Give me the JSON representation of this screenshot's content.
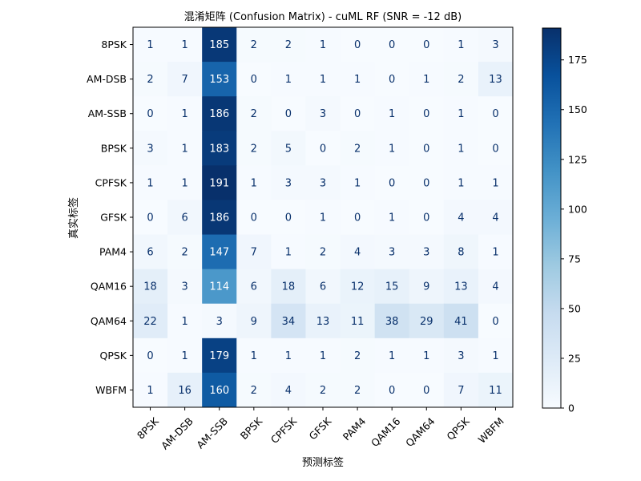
{
  "chart_data": {
    "type": "heatmap",
    "title": "混淆矩阵 (Confusion Matrix) - cuML RF (SNR = -12 dB)",
    "xlabel": "预测标签",
    "ylabel": "真实标签",
    "x_categories": [
      "8PSK",
      "AM-DSB",
      "AM-SSB",
      "BPSK",
      "CPFSK",
      "GFSK",
      "PAM4",
      "QAM16",
      "QAM64",
      "QPSK",
      "WBFM"
    ],
    "y_categories": [
      "8PSK",
      "AM-DSB",
      "AM-SSB",
      "BPSK",
      "CPFSK",
      "GFSK",
      "PAM4",
      "QAM16",
      "QAM64",
      "QPSK",
      "WBFM"
    ],
    "values": [
      [
        1,
        1,
        185,
        2,
        2,
        1,
        0,
        0,
        0,
        1,
        3
      ],
      [
        2,
        7,
        153,
        0,
        1,
        1,
        1,
        0,
        1,
        2,
        13
      ],
      [
        0,
        1,
        186,
        2,
        0,
        3,
        0,
        1,
        0,
        1,
        0
      ],
      [
        3,
        1,
        183,
        2,
        5,
        0,
        2,
        1,
        0,
        1,
        0
      ],
      [
        1,
        1,
        191,
        1,
        3,
        3,
        1,
        0,
        0,
        1,
        1
      ],
      [
        0,
        6,
        186,
        0,
        0,
        1,
        0,
        1,
        0,
        4,
        4
      ],
      [
        6,
        2,
        147,
        7,
        1,
        2,
        4,
        3,
        3,
        8,
        1
      ],
      [
        18,
        3,
        114,
        6,
        18,
        6,
        12,
        15,
        9,
        13,
        4
      ],
      [
        22,
        1,
        3,
        9,
        34,
        13,
        11,
        38,
        29,
        41,
        0
      ],
      [
        0,
        1,
        179,
        1,
        1,
        1,
        2,
        1,
        1,
        3,
        1
      ],
      [
        1,
        16,
        160,
        2,
        4,
        2,
        2,
        0,
        0,
        7,
        11
      ]
    ],
    "colormap": "Blues",
    "vmin": 0,
    "vmax": 191,
    "colorbar_ticks": [
      0,
      25,
      50,
      75,
      100,
      125,
      150,
      175
    ],
    "grid": false
  }
}
